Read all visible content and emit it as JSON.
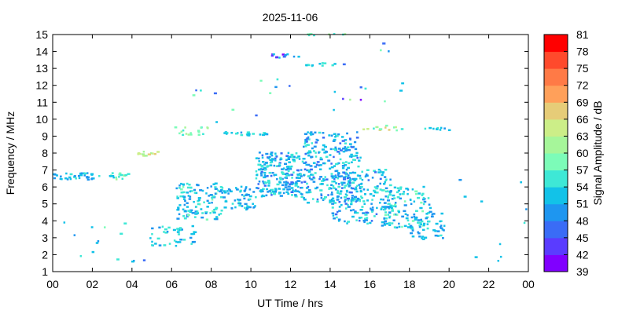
{
  "chart_data": {
    "type": "heatmap",
    "title": "2025-11-06",
    "xlabel": "UT Time / hrs",
    "ylabel": "Frequency / MHz",
    "xlim": [
      0,
      24
    ],
    "ylim": [
      1,
      15
    ],
    "x_ticks": [
      "00",
      "02",
      "04",
      "06",
      "08",
      "10",
      "12",
      "14",
      "16",
      "18",
      "20",
      "22",
      "00"
    ],
    "y_ticks": [
      "1",
      "2",
      "3",
      "4",
      "5",
      "6",
      "7",
      "8",
      "9",
      "10",
      "11",
      "12",
      "13",
      "14",
      "15"
    ],
    "colorbar": {
      "label": "Signal Amplitude / dB",
      "ticks": [
        "39",
        "42",
        "45",
        "48",
        "51",
        "54",
        "57",
        "60",
        "63",
        "66",
        "69",
        "72",
        "75",
        "78",
        "81"
      ],
      "range": [
        39,
        81
      ],
      "colors": [
        "#8000ff",
        "#5a3cff",
        "#3a6cf6",
        "#1e96f0",
        "#12c2e8",
        "#3ee8d6",
        "#7cfcb8",
        "#a6f69a",
        "#ccee88",
        "#e6cc78",
        "#ffa05a",
        "#ff7a46",
        "#ff4a2c",
        "#ff0000"
      ]
    },
    "grid": false,
    "legend": "colorbar-right",
    "regions": [
      {
        "x": [
          0.0,
          2.0
        ],
        "y": [
          6.4,
          6.8
        ],
        "n": 35,
        "v": [
          48,
          55
        ]
      },
      {
        "x": [
          2.3,
          3.8
        ],
        "y": [
          6.4,
          6.8
        ],
        "n": 18,
        "v": [
          52,
          62
        ]
      },
      {
        "x": [
          4.2,
          5.3
        ],
        "y": [
          7.8,
          8.1
        ],
        "n": 12,
        "v": [
          60,
          67
        ]
      },
      {
        "x": [
          4.8,
          7.2
        ],
        "y": [
          2.4,
          3.8
        ],
        "n": 45,
        "v": [
          49,
          57
        ]
      },
      {
        "x": [
          6.2,
          8.5
        ],
        "y": [
          4.0,
          6.2
        ],
        "n": 120,
        "v": [
          48,
          58
        ]
      },
      {
        "x": [
          8.5,
          10.2
        ],
        "y": [
          4.6,
          6.0
        ],
        "n": 60,
        "v": [
          48,
          56
        ]
      },
      {
        "x": [
          10.2,
          12.5
        ],
        "y": [
          5.4,
          8.0
        ],
        "n": 220,
        "v": [
          47,
          57
        ]
      },
      {
        "x": [
          12.5,
          15.5
        ],
        "y": [
          5.0,
          9.2
        ],
        "n": 260,
        "v": [
          46,
          57
        ]
      },
      {
        "x": [
          14.0,
          17.0
        ],
        "y": [
          3.8,
          7.0
        ],
        "n": 200,
        "v": [
          47,
          57
        ]
      },
      {
        "x": [
          16.5,
          19.0
        ],
        "y": [
          3.5,
          6.0
        ],
        "n": 120,
        "v": [
          48,
          58
        ]
      },
      {
        "x": [
          18.0,
          19.8
        ],
        "y": [
          2.8,
          4.5
        ],
        "n": 45,
        "v": [
          48,
          55
        ]
      },
      {
        "x": [
          6.0,
          7.8
        ],
        "y": [
          9.0,
          9.5
        ],
        "n": 18,
        "v": [
          55,
          63
        ]
      },
      {
        "x": [
          8.6,
          10.8
        ],
        "y": [
          9.0,
          9.2
        ],
        "n": 22,
        "v": [
          50,
          56
        ]
      },
      {
        "x": [
          15.6,
          17.6
        ],
        "y": [
          9.3,
          9.6
        ],
        "n": 14,
        "v": [
          52,
          72
        ]
      },
      {
        "x": [
          18.7,
          20.0
        ],
        "y": [
          9.3,
          9.5
        ],
        "n": 10,
        "v": [
          50,
          55
        ]
      },
      {
        "x": [
          11.0,
          12.5
        ],
        "y": [
          13.6,
          13.8
        ],
        "n": 12,
        "v": [
          40,
          54
        ]
      },
      {
        "x": [
          12.2,
          14.2
        ],
        "y": [
          13.1,
          13.3
        ],
        "n": 12,
        "v": [
          52,
          57
        ]
      },
      {
        "x": [
          12.8,
          15.0
        ],
        "y": [
          14.9,
          15.0
        ],
        "n": 8,
        "v": [
          55,
          62
        ]
      },
      {
        "x": [
          0.5,
          5.0
        ],
        "y": [
          1.5,
          4.0
        ],
        "n": 14,
        "v": [
          45,
          60
        ]
      },
      {
        "x": [
          20.0,
          24.0
        ],
        "y": [
          1.4,
          6.8
        ],
        "n": 10,
        "v": [
          48,
          56
        ]
      },
      {
        "x": [
          7.0,
          12.0
        ],
        "y": [
          9.5,
          12.5
        ],
        "n": 12,
        "v": [
          45,
          60
        ]
      },
      {
        "x": [
          14.0,
          17.8
        ],
        "y": [
          10.5,
          14.5
        ],
        "n": 14,
        "v": [
          40,
          62
        ]
      }
    ]
  }
}
